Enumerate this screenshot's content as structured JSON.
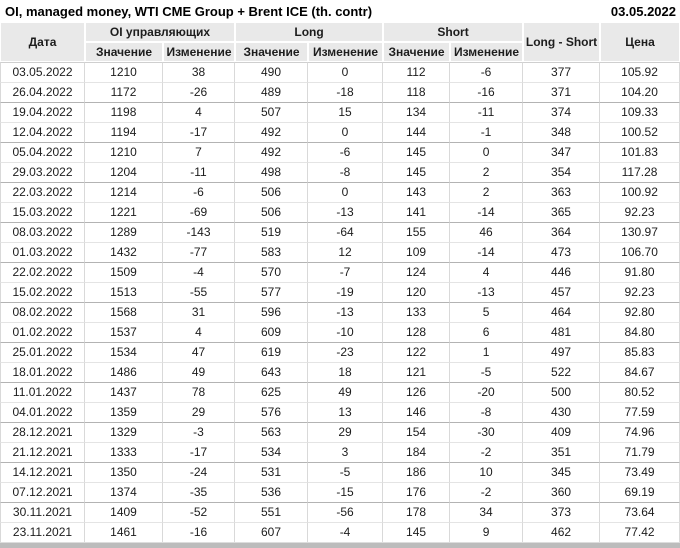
{
  "chart_data": {
    "type": "table",
    "title": "OI, managed money, WTI CME Group + Brent ICE (th. contr)",
    "report_date": "03.05.2022",
    "headers": {
      "date": "Дата",
      "oi_group": "OI управляющих",
      "long_group": "Long",
      "short_group": "Short",
      "value_sub": "Значение",
      "change_sub": "Изменение",
      "long_short": "Long - Short",
      "price": "Цена"
    },
    "row_format": [
      "date",
      "oi_value",
      "oi_change",
      "oi_change_color",
      "long_value",
      "long_change",
      "long_change_color",
      "short_value",
      "short_change",
      "short_change_color",
      "long_short",
      "price"
    ],
    "color_codes": {
      "g": "green",
      "r": "red",
      "k": "black"
    },
    "rows": [
      [
        "03.05.2022",
        1210,
        38,
        "g",
        490,
        0,
        "k",
        112,
        -6,
        "r",
        377,
        "105.92"
      ],
      [
        "26.04.2022",
        1172,
        -26,
        "r",
        489,
        -18,
        "r",
        118,
        -16,
        "r",
        371,
        "104.20"
      ],
      [
        "19.04.2022",
        1198,
        4,
        "g",
        507,
        15,
        "g",
        134,
        -11,
        "r",
        374,
        "109.33"
      ],
      [
        "12.04.2022",
        1194,
        -17,
        "r",
        492,
        0,
        "r",
        144,
        -1,
        "r",
        348,
        "100.52"
      ],
      [
        "05.04.2022",
        1210,
        7,
        "g",
        492,
        -6,
        "r",
        145,
        0,
        "g",
        347,
        "101.83"
      ],
      [
        "29.03.2022",
        1204,
        -11,
        "r",
        498,
        -8,
        "r",
        145,
        2,
        "g",
        354,
        "117.28"
      ],
      [
        "22.03.2022",
        1214,
        -6,
        "r",
        506,
        0,
        "g",
        143,
        2,
        "g",
        363,
        "100.92"
      ],
      [
        "15.03.2022",
        1221,
        -69,
        "r",
        506,
        -13,
        "r",
        141,
        -14,
        "r",
        365,
        "92.23"
      ],
      [
        "08.03.2022",
        1289,
        -143,
        "r",
        519,
        -64,
        "r",
        155,
        46,
        "g",
        364,
        "130.97"
      ],
      [
        "01.03.2022",
        1432,
        -77,
        "r",
        583,
        12,
        "g",
        109,
        -14,
        "r",
        473,
        "106.70"
      ],
      [
        "22.02.2022",
        1509,
        -4,
        "r",
        570,
        -7,
        "r",
        124,
        4,
        "g",
        446,
        "91.80"
      ],
      [
        "15.02.2022",
        1513,
        -55,
        "r",
        577,
        -19,
        "r",
        120,
        -13,
        "r",
        457,
        "92.23"
      ],
      [
        "08.02.2022",
        1568,
        31,
        "g",
        596,
        -13,
        "r",
        133,
        5,
        "g",
        464,
        "92.80"
      ],
      [
        "01.02.2022",
        1537,
        4,
        "g",
        609,
        -10,
        "r",
        128,
        6,
        "g",
        481,
        "84.80"
      ],
      [
        "25.01.2022",
        1534,
        47,
        "g",
        619,
        -23,
        "r",
        122,
        1,
        "g",
        497,
        "85.83"
      ],
      [
        "18.01.2022",
        1486,
        49,
        "g",
        643,
        18,
        "g",
        121,
        -5,
        "r",
        522,
        "84.67"
      ],
      [
        "11.01.2022",
        1437,
        78,
        "g",
        625,
        49,
        "g",
        126,
        -20,
        "r",
        500,
        "80.52"
      ],
      [
        "04.01.2022",
        1359,
        29,
        "g",
        576,
        13,
        "g",
        146,
        -8,
        "r",
        430,
        "77.59"
      ],
      [
        "28.12.2021",
        1329,
        -3,
        "r",
        563,
        29,
        "g",
        154,
        -30,
        "r",
        409,
        "74.96"
      ],
      [
        "21.12.2021",
        1333,
        -17,
        "r",
        534,
        3,
        "g",
        184,
        -2,
        "r",
        351,
        "71.79"
      ],
      [
        "14.12.2021",
        1350,
        -24,
        "r",
        531,
        -5,
        "r",
        186,
        10,
        "g",
        345,
        "73.49"
      ],
      [
        "07.12.2021",
        1374,
        -35,
        "r",
        536,
        -15,
        "r",
        176,
        -2,
        "r",
        360,
        "69.19"
      ],
      [
        "30.11.2021",
        1409,
        -52,
        "r",
        551,
        -56,
        "r",
        178,
        34,
        "g",
        373,
        "73.64"
      ],
      [
        "23.11.2021",
        1461,
        -16,
        "r",
        607,
        -4,
        "r",
        145,
        9,
        "g",
        462,
        "77.42"
      ]
    ]
  },
  "colors": {
    "positive_change": "#008f00",
    "negative_change": "#dc0000",
    "neutral_change": "#222222",
    "header_background": "#e9e9e9"
  }
}
